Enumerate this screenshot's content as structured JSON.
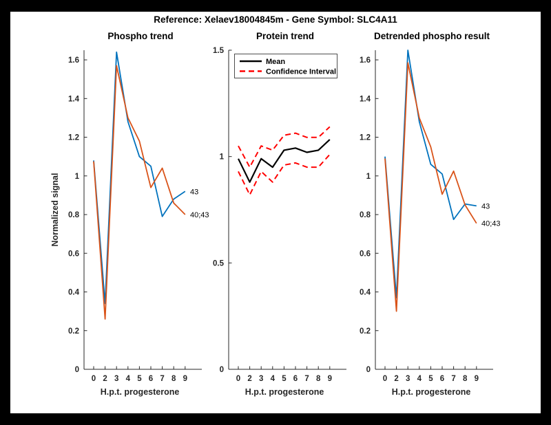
{
  "title": "Reference:  Xelaev18004845m - Gene Symbol:  SLC4A11",
  "colors": {
    "series_blue": "#0072BD",
    "series_orange": "#D95319",
    "confidence_red": "#FF0000",
    "mean_black": "#000000",
    "axis": "#262626",
    "figure_bg": "#FFFFFF",
    "page_bg": "#000000"
  },
  "chart_data": [
    {
      "type": "line",
      "title": "Phospho trend",
      "xlabel": "H.p.t. progesterone",
      "ylabel": "Normalized signal",
      "categories": [
        "0",
        "2",
        "3",
        "4",
        "5",
        "6",
        "7",
        "8",
        "9"
      ],
      "ylim": [
        0,
        1.65
      ],
      "yticks": {
        "values": [
          0,
          0.2,
          0.4,
          0.6,
          0.8,
          1,
          1.2,
          1.4,
          1.6
        ],
        "labels": [
          "0",
          "0.2",
          "0.4",
          "0.6",
          "0.8",
          "1",
          "1.2",
          "1.4",
          "1.6"
        ]
      },
      "grid": false,
      "series": [
        {
          "name": "43",
          "color": "#0072BD",
          "style": "solid",
          "values": [
            1.08,
            0.34,
            1.64,
            1.28,
            1.1,
            1.05,
            0.79,
            0.88,
            0.92
          ]
        },
        {
          "name": "40;43",
          "color": "#D95319",
          "style": "solid",
          "values": [
            1.075,
            0.26,
            1.57,
            1.3,
            1.18,
            0.94,
            1.04,
            0.86,
            0.8
          ]
        }
      ],
      "end_labels": [
        "43",
        "40;43"
      ]
    },
    {
      "type": "line",
      "title": "Protein trend",
      "xlabel": "H.p.t. progesterone",
      "ylabel": "",
      "categories": [
        "0",
        "2",
        "3",
        "4",
        "5",
        "6",
        "7",
        "8",
        "9"
      ],
      "ylim": [
        0,
        1.5
      ],
      "yticks": {
        "values": [
          0,
          0.5,
          1,
          1.5
        ],
        "labels": [
          "0",
          "0.5",
          "1",
          "1.5"
        ]
      },
      "grid": false,
      "legend": [
        "Mean",
        "Confidence Interval"
      ],
      "legend_position": "upper-left-inside",
      "series": [
        {
          "name": "Mean",
          "color": "#000000",
          "style": "solid",
          "values": [
            0.99,
            0.88,
            0.99,
            0.95,
            1.03,
            1.04,
            1.02,
            1.03,
            1.08
          ]
        },
        {
          "name": "Confidence Interval upper",
          "color": "#FF0000",
          "style": "dashed",
          "values": [
            1.05,
            0.95,
            1.05,
            1.03,
            1.1,
            1.11,
            1.09,
            1.09,
            1.14
          ]
        },
        {
          "name": "Confidence Interval lower",
          "color": "#FF0000",
          "style": "dashed",
          "values": [
            0.93,
            0.82,
            0.93,
            0.88,
            0.96,
            0.97,
            0.95,
            0.95,
            1.01
          ]
        }
      ],
      "end_labels": []
    },
    {
      "type": "line",
      "title": "Detrended phospho result",
      "xlabel": "H.p.t. progesterone",
      "ylabel": "",
      "categories": [
        "0",
        "2",
        "3",
        "4",
        "5",
        "6",
        "7",
        "8",
        "9"
      ],
      "ylim": [
        0,
        1.65
      ],
      "yticks": {
        "values": [
          0,
          0.2,
          0.4,
          0.6,
          0.8,
          1,
          1.2,
          1.4,
          1.6
        ],
        "labels": [
          "0",
          "0.2",
          "0.4",
          "0.6",
          "0.8",
          "1",
          "1.2",
          "1.4",
          "1.6"
        ]
      },
      "grid": false,
      "series": [
        {
          "name": "43",
          "color": "#0072BD",
          "style": "solid",
          "values": [
            1.1,
            0.37,
            1.65,
            1.28,
            1.06,
            1.01,
            0.775,
            0.855,
            0.845
          ]
        },
        {
          "name": "40;43",
          "color": "#D95319",
          "style": "solid",
          "values": [
            1.09,
            0.3,
            1.585,
            1.3,
            1.15,
            0.905,
            1.025,
            0.85,
            0.755
          ]
        }
      ],
      "end_labels": [
        "43",
        "40;43"
      ]
    }
  ]
}
